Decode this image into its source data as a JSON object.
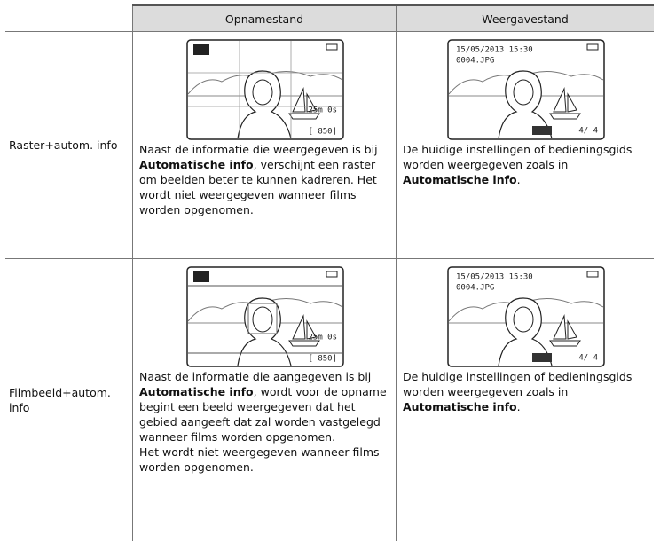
{
  "table": {
    "header": [
      "",
      "Opnamestand",
      "Weergavestand"
    ],
    "rows": [
      {
        "label": "Raster+autom. info",
        "rec_screen": [
          "25m 0s",
          "[  850]"
        ],
        "rec_desc": [
          [
            {
              "text": "Naast de informatie die weergegeven is bij ",
              "bold": false
            },
            {
              "text": "Automatische info",
              "bold": true
            },
            {
              "text": ", verschijnt een raster om beelden beter te kunnen kadreren. Het wordt niet weergegeven wanneer films worden opgenomen.",
              "bold": false
            }
          ]
        ],
        "play_screen": [
          "15/05/2013 15:30",
          "0004.JPG",
          "4/    4"
        ],
        "play_desc": [
          [
            {
              "text": "De huidige instellingen of bedieningsgids worden weergegeven zoals in ",
              "bold": false
            },
            {
              "text": "Automatische info",
              "bold": true
            },
            {
              "text": ".",
              "bold": false
            }
          ]
        ]
      },
      {
        "label": "Filmbeeld+autom. info",
        "rec_screen": [
          "25m 0s",
          "[  850]"
        ],
        "rec_desc": [
          [
            {
              "text": "Naast de informatie die aangegeven is bij ",
              "bold": false
            },
            {
              "text": "Automatische info",
              "bold": true
            },
            {
              "text": ", wordt voor de opname begint een beeld weergegeven dat het gebied aangeeft dat zal worden vastgelegd wanneer films worden opgenomen.",
              "bold": false
            }
          ],
          [
            {
              "text": "Het wordt niet weergegeven wanneer films worden opgenomen.",
              "bold": false
            }
          ]
        ],
        "play_screen": [
          "15/05/2013 15:30",
          "0004.JPG",
          "4/    4"
        ],
        "play_desc": [
          [
            {
              "text": "De huidige instellingen of bedieningsgids worden weergegeven zoals in ",
              "bold": false
            },
            {
              "text": "Automatische info",
              "bold": true
            },
            {
              "text": ".",
              "bold": false
            }
          ]
        ]
      }
    ]
  }
}
